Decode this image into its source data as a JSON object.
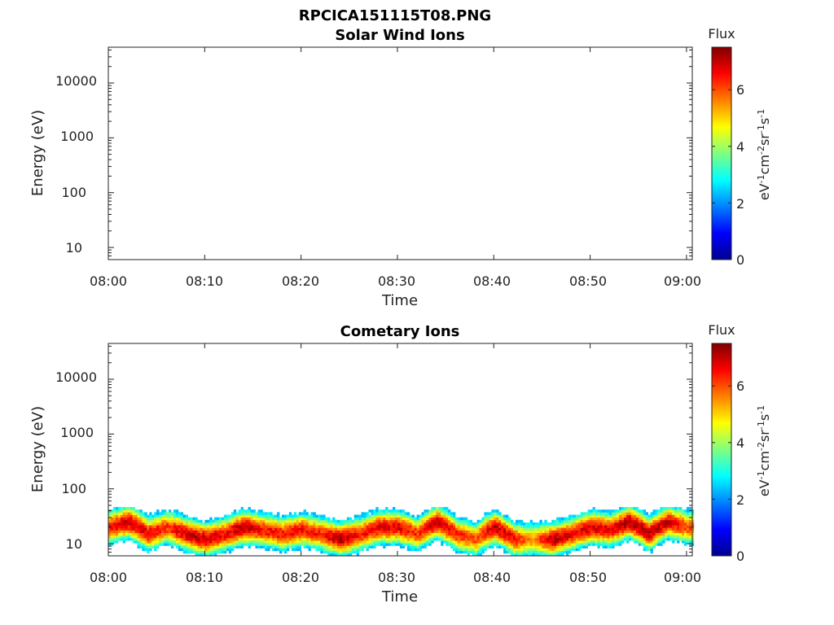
{
  "figure": {
    "title": "RPCICA151115T08.PNG",
    "colorscale": [
      "#00008f",
      "#0000ff",
      "#0080ff",
      "#00ffff",
      "#80ff80",
      "#ffff00",
      "#ff8000",
      "#ff0000",
      "#800000"
    ]
  },
  "chart_data": [
    {
      "type": "heatmap",
      "title": "Solar Wind Ions",
      "xlabel": "Time",
      "ylabel": "Energy (eV)",
      "x_ticks": [
        "08:00",
        "08:10",
        "08:20",
        "08:30",
        "08:40",
        "08:50",
        "09:00"
      ],
      "y_scale": "log",
      "y_ticks": [
        "10",
        "100",
        "1000",
        "10000"
      ],
      "xlim": [
        "08:00",
        "09:00"
      ],
      "ylim": [
        6,
        45000
      ],
      "colorbar": {
        "label": "Flux",
        "unit_label": "eV-1cm-2sr-1s-1",
        "ticks": [
          "0",
          "2",
          "4",
          "6"
        ],
        "range": [
          0,
          7.5
        ]
      },
      "data_present": false,
      "bands": []
    },
    {
      "type": "heatmap",
      "title": "Cometary Ions",
      "xlabel": "Time",
      "ylabel": "Energy (eV)",
      "x_ticks": [
        "08:00",
        "08:10",
        "08:20",
        "08:30",
        "08:40",
        "08:50",
        "09:00"
      ],
      "y_scale": "log",
      "y_ticks": [
        "10",
        "100",
        "1000",
        "10000"
      ],
      "xlim": [
        "08:00",
        "09:00"
      ],
      "ylim": [
        6,
        45000
      ],
      "colorbar": {
        "label": "Flux",
        "unit_label": "eV-1cm-2sr-1s-1",
        "ticks": [
          "0",
          "2",
          "4",
          "6"
        ],
        "range": [
          0,
          7.5
        ]
      },
      "data_present": true,
      "flux_region_energy_eV": [
        6,
        80
      ],
      "bands": [
        {
          "t": "08:00",
          "peak_eV": 20,
          "peak_flux": 6.5
        },
        {
          "t": "08:02",
          "peak_eV": 25,
          "peak_flux": 7.0
        },
        {
          "t": "08:04",
          "peak_eV": 15,
          "peak_flux": 6.8
        },
        {
          "t": "08:06",
          "peak_eV": 20,
          "peak_flux": 6.2
        },
        {
          "t": "08:08",
          "peak_eV": 15,
          "peak_flux": 6.9
        },
        {
          "t": "08:10",
          "peak_eV": 12,
          "peak_flux": 7.0
        },
        {
          "t": "08:12",
          "peak_eV": 15,
          "peak_flux": 6.6
        },
        {
          "t": "08:14",
          "peak_eV": 20,
          "peak_flux": 7.2
        },
        {
          "t": "08:16",
          "peak_eV": 18,
          "peak_flux": 6.4
        },
        {
          "t": "08:18",
          "peak_eV": 15,
          "peak_flux": 6.5
        },
        {
          "t": "08:20",
          "peak_eV": 18,
          "peak_flux": 6.6
        },
        {
          "t": "08:22",
          "peak_eV": 15,
          "peak_flux": 6.3
        },
        {
          "t": "08:24",
          "peak_eV": 12,
          "peak_flux": 7.2
        },
        {
          "t": "08:26",
          "peak_eV": 15,
          "peak_flux": 6.4
        },
        {
          "t": "08:28",
          "peak_eV": 20,
          "peak_flux": 6.8
        },
        {
          "t": "08:30",
          "peak_eV": 20,
          "peak_flux": 6.7
        },
        {
          "t": "08:32",
          "peak_eV": 15,
          "peak_flux": 6.2
        },
        {
          "t": "08:34",
          "peak_eV": 25,
          "peak_flux": 7.0
        },
        {
          "t": "08:36",
          "peak_eV": 15,
          "peak_flux": 6.4
        },
        {
          "t": "08:38",
          "peak_eV": 12,
          "peak_flux": 6.0
        },
        {
          "t": "08:40",
          "peak_eV": 20,
          "peak_flux": 7.0
        },
        {
          "t": "08:42",
          "peak_eV": 12,
          "peak_flux": 6.5
        },
        {
          "t": "08:44",
          "peak_eV": 12,
          "peak_flux": 5.5
        },
        {
          "t": "08:46",
          "peak_eV": 12,
          "peak_flux": 7.1
        },
        {
          "t": "08:48",
          "peak_eV": 15,
          "peak_flux": 6.6
        },
        {
          "t": "08:50",
          "peak_eV": 20,
          "peak_flux": 6.9
        },
        {
          "t": "08:52",
          "peak_eV": 18,
          "peak_flux": 6.7
        },
        {
          "t": "08:54",
          "peak_eV": 25,
          "peak_flux": 7.1
        },
        {
          "t": "08:56",
          "peak_eV": 15,
          "peak_flux": 7.0
        },
        {
          "t": "08:58",
          "peak_eV": 25,
          "peak_flux": 6.8
        },
        {
          "t": "09:00",
          "peak_eV": 20,
          "peak_flux": 6.0
        }
      ]
    }
  ]
}
